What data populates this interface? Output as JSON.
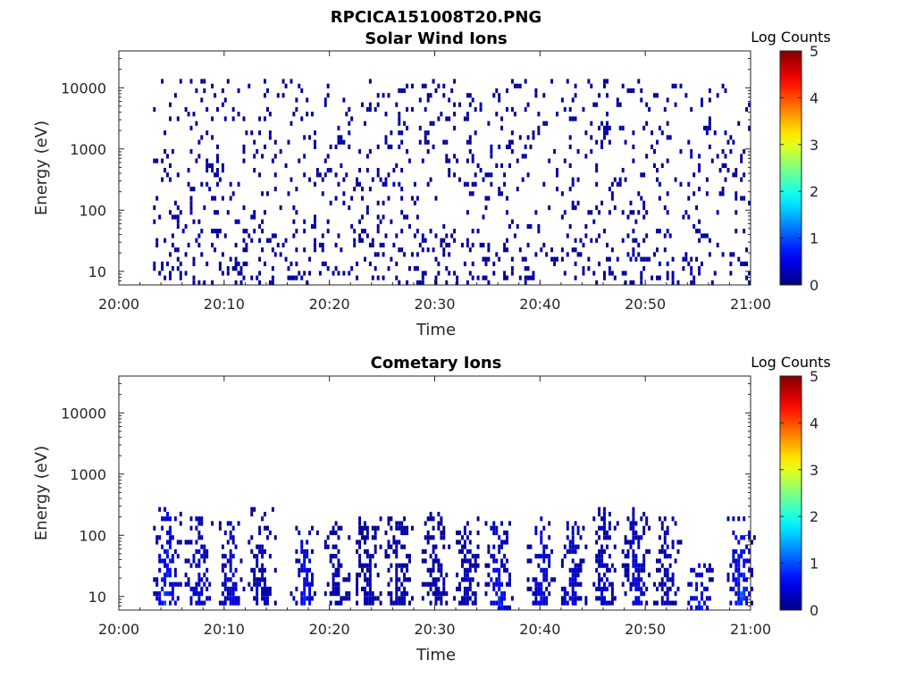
{
  "figure_title": "RPCICA151008T20.PNG",
  "chart_data": [
    {
      "type": "heatmap",
      "title": "Solar Wind Ions",
      "xlabel": "Time",
      "ylabel": "Energy (eV)",
      "x_ticks": [
        "20:00",
        "20:10",
        "20:20",
        "20:30",
        "20:40",
        "20:50",
        "21:00"
      ],
      "x_range": [
        "20:00",
        "21:00"
      ],
      "y_scale": "log",
      "y_ticks": [
        10,
        100,
        1000,
        10000
      ],
      "y_tick_labels": [
        "10",
        "100",
        "1000",
        "10000"
      ],
      "ylim": [
        6,
        40000
      ],
      "colorbar": {
        "label": "Log Counts",
        "range": [
          0,
          5
        ],
        "ticks": [
          "0",
          "1",
          "2",
          "3",
          "4",
          "5"
        ],
        "colormap": "jet"
      },
      "data_summary": {
        "counts_range_log": [
          0,
          0.2
        ],
        "time_range": [
          "20:03",
          "21:00"
        ],
        "energy_range_eV": [
          8,
          12000
        ],
        "pattern": "sparse scattered single-count pixels across all energies"
      }
    },
    {
      "type": "heatmap",
      "title": "Cometary Ions",
      "xlabel": "Time",
      "ylabel": "Energy (eV)",
      "x_ticks": [
        "20:00",
        "20:10",
        "20:20",
        "20:30",
        "20:40",
        "20:50",
        "21:00"
      ],
      "x_range": [
        "20:00",
        "21:00"
      ],
      "y_scale": "log",
      "y_ticks": [
        10,
        100,
        1000,
        10000
      ],
      "y_tick_labels": [
        "10",
        "100",
        "1000",
        "10000"
      ],
      "ylim": [
        6,
        40000
      ],
      "colorbar": {
        "label": "Log Counts",
        "range": [
          0,
          5
        ],
        "ticks": [
          "0",
          "1",
          "2",
          "3",
          "4",
          "5"
        ],
        "colormap": "jet"
      },
      "bursts": [
        {
          "time_min": 4.5,
          "e_low": 8,
          "e_high": 250,
          "peak_log": 1.2
        },
        {
          "time_min": 7.5,
          "e_low": 8,
          "e_high": 200,
          "peak_log": 0.6
        },
        {
          "time_min": 10.5,
          "e_low": 8,
          "e_high": 150,
          "peak_log": 0.6
        },
        {
          "time_min": 13.5,
          "e_low": 8,
          "e_high": 250,
          "peak_log": 0.4
        },
        {
          "time_min": 17.5,
          "e_low": 8,
          "e_high": 130,
          "peak_log": 0.8
        },
        {
          "time_min": 20.5,
          "e_low": 8,
          "e_high": 150,
          "peak_log": 0.3
        },
        {
          "time_min": 23.5,
          "e_low": 8,
          "e_high": 180,
          "peak_log": 0.3
        },
        {
          "time_min": 26.5,
          "e_low": 8,
          "e_high": 200,
          "peak_log": 0.3
        },
        {
          "time_min": 30,
          "e_low": 8,
          "e_high": 230,
          "peak_log": 0.3
        },
        {
          "time_min": 33,
          "e_low": 8,
          "e_high": 200,
          "peak_log": 0.4
        },
        {
          "time_min": 36,
          "e_low": 6,
          "e_high": 180,
          "peak_log": 0.9
        },
        {
          "time_min": 40,
          "e_low": 8,
          "e_high": 200,
          "peak_log": 0.7
        },
        {
          "time_min": 43,
          "e_low": 8,
          "e_high": 180,
          "peak_log": 0.6
        },
        {
          "time_min": 46,
          "e_low": 8,
          "e_high": 250,
          "peak_log": 0.5
        },
        {
          "time_min": 49,
          "e_low": 8,
          "e_high": 250,
          "peak_log": 0.6
        },
        {
          "time_min": 52,
          "e_low": 8,
          "e_high": 180,
          "peak_log": 0.4
        },
        {
          "time_min": 55,
          "e_low": 6,
          "e_high": 30,
          "peak_log": 1.0
        },
        {
          "time_min": 59,
          "e_low": 8,
          "e_high": 200,
          "peak_log": 1.1
        }
      ]
    }
  ]
}
